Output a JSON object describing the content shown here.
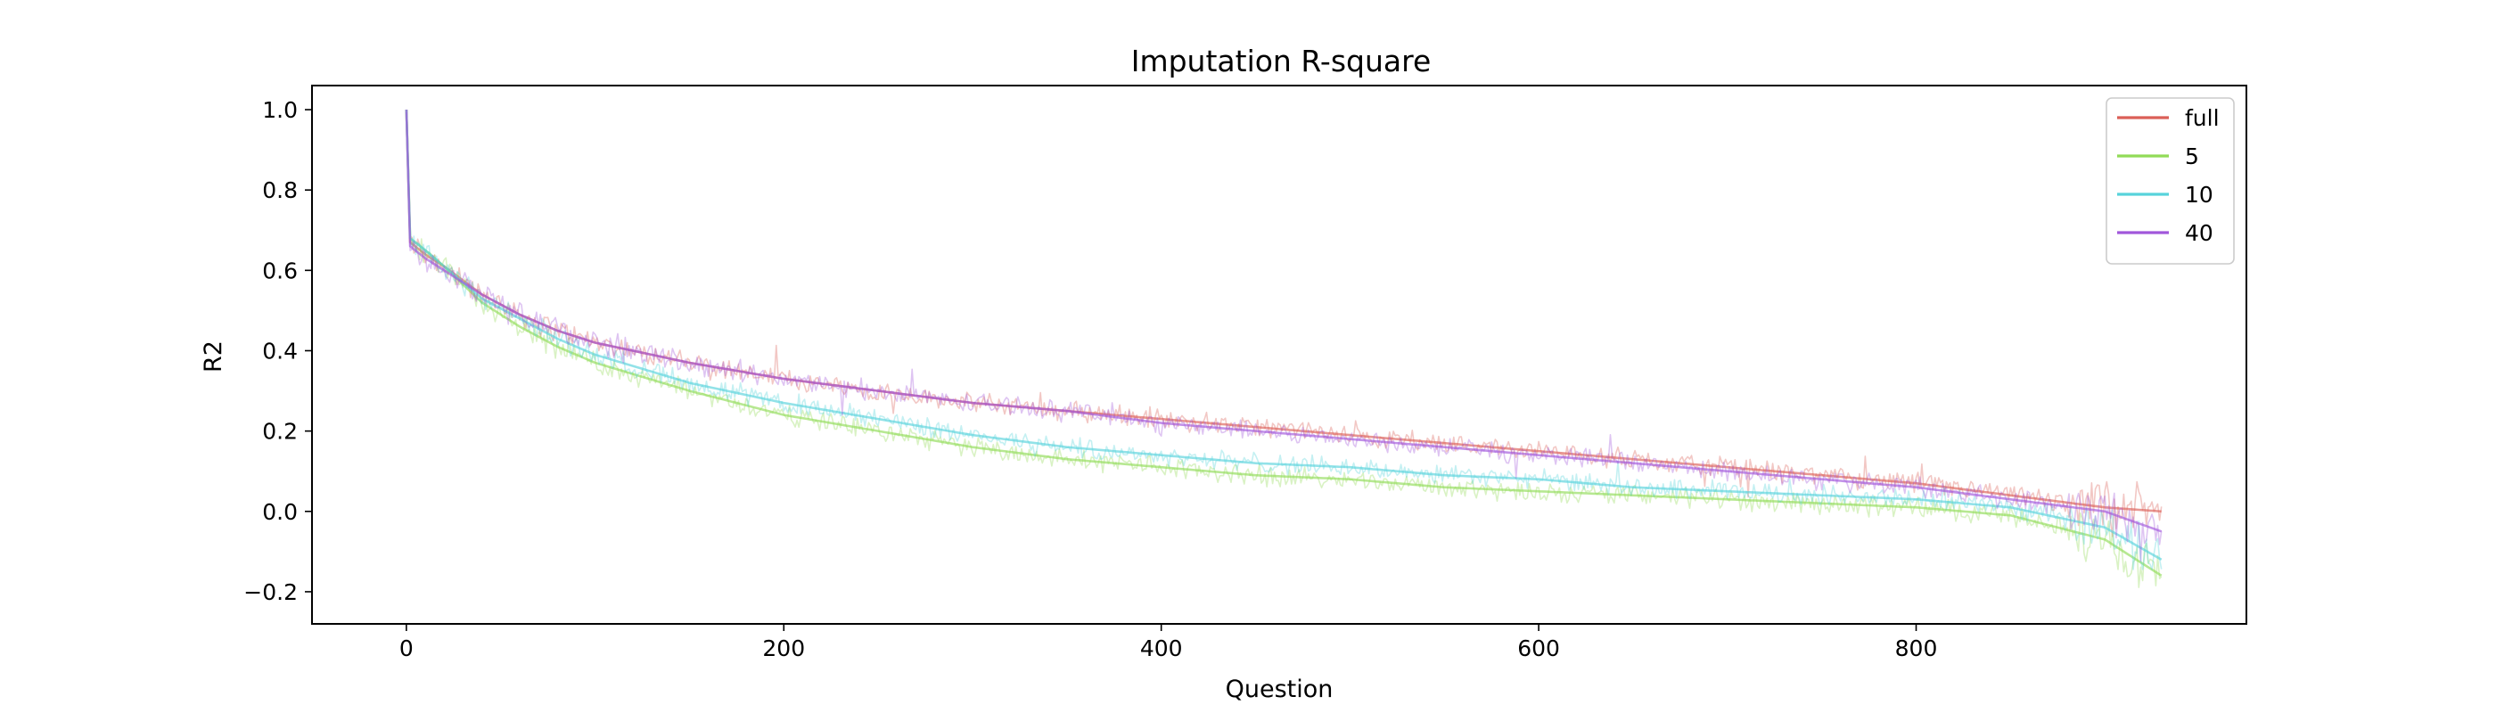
{
  "chart_data": {
    "type": "line",
    "title": "Imputation R-square",
    "xlabel": "Question",
    "ylabel": "R2",
    "xlim": [
      -50,
      975
    ],
    "ylim": [
      -0.28,
      1.06
    ],
    "x_ticks": [
      0,
      200,
      400,
      600,
      800
    ],
    "y_ticks": [
      -0.2,
      0.0,
      0.2,
      0.4,
      0.6,
      0.8,
      1.0
    ],
    "y_tick_labels": [
      "−0.2",
      "0.0",
      "0.2",
      "0.4",
      "0.6",
      "0.8",
      "1.0"
    ],
    "grid": false,
    "legend_position": "top-right",
    "note": "Each series is drawn as a smooth mean line with a lighter, noisy band of per-question values around it.",
    "series": [
      {
        "name": "full",
        "color": "#db5f57",
        "x": [
          0,
          2,
          10,
          20,
          40,
          60,
          80,
          100,
          150,
          200,
          250,
          300,
          350,
          400,
          450,
          500,
          550,
          600,
          650,
          700,
          750,
          800,
          850,
          900,
          930
        ],
        "values": [
          1.0,
          0.67,
          0.64,
          0.61,
          0.54,
          0.49,
          0.45,
          0.42,
          0.37,
          0.33,
          0.3,
          0.27,
          0.25,
          0.23,
          0.21,
          0.19,
          0.17,
          0.15,
          0.13,
          0.11,
          0.09,
          0.07,
          0.04,
          0.01,
          0.0
        ]
      },
      {
        "name": "5",
        "color": "#91db57",
        "x": [
          0,
          2,
          10,
          20,
          40,
          60,
          80,
          100,
          150,
          200,
          250,
          300,
          350,
          400,
          450,
          500,
          550,
          600,
          650,
          700,
          750,
          800,
          850,
          900,
          930
        ],
        "values": [
          1.0,
          0.68,
          0.65,
          0.61,
          0.52,
          0.46,
          0.41,
          0.37,
          0.3,
          0.24,
          0.2,
          0.16,
          0.13,
          0.11,
          0.09,
          0.08,
          0.06,
          0.05,
          0.04,
          0.03,
          0.02,
          0.01,
          -0.01,
          -0.07,
          -0.16
        ]
      },
      {
        "name": "10",
        "color": "#57d3db",
        "x": [
          0,
          2,
          10,
          20,
          40,
          60,
          80,
          100,
          150,
          200,
          250,
          300,
          350,
          400,
          450,
          500,
          550,
          600,
          650,
          700,
          750,
          800,
          850,
          900,
          930
        ],
        "values": [
          1.0,
          0.68,
          0.65,
          0.61,
          0.53,
          0.48,
          0.43,
          0.39,
          0.32,
          0.27,
          0.23,
          0.19,
          0.16,
          0.14,
          0.12,
          0.11,
          0.09,
          0.08,
          0.06,
          0.05,
          0.04,
          0.03,
          0.01,
          -0.04,
          -0.12
        ]
      },
      {
        "name": "40",
        "color": "#a157db",
        "x": [
          0,
          2,
          10,
          20,
          40,
          60,
          80,
          100,
          150,
          200,
          250,
          300,
          350,
          400,
          450,
          500,
          550,
          600,
          650,
          700,
          750,
          800,
          850,
          900,
          930
        ],
        "values": [
          1.0,
          0.66,
          0.63,
          0.6,
          0.54,
          0.49,
          0.45,
          0.42,
          0.37,
          0.33,
          0.3,
          0.27,
          0.25,
          0.22,
          0.2,
          0.18,
          0.16,
          0.14,
          0.12,
          0.1,
          0.08,
          0.06,
          0.03,
          0.0,
          -0.05
        ]
      }
    ]
  }
}
